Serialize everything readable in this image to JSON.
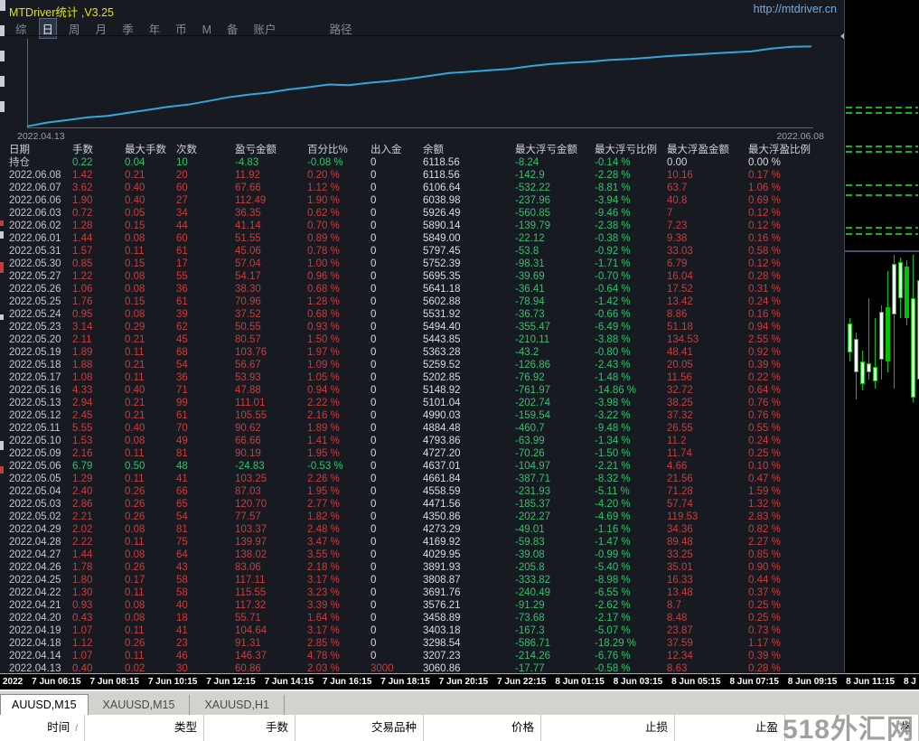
{
  "titlebar": {
    "title": "MTDriver统计 ,V3.25",
    "url": "http://mtdriver.cn"
  },
  "menu": {
    "items": [
      "综",
      "日",
      "周",
      "月",
      "季",
      "年",
      "币",
      "M",
      "备",
      "账户",
      "路径"
    ],
    "active": "日",
    "gap_before": "路径"
  },
  "equity_chart": {
    "start_label": "2022.04.13",
    "end_label": "2022.06.08"
  },
  "stats_table": {
    "headers": [
      "日期",
      "手数",
      "最大手数",
      "次数",
      "盈亏金额",
      "百分比%",
      "出入金",
      "余额",
      "最大浮亏金额",
      "最大浮亏比例",
      "最大浮盈金额",
      "最大浮盈比例"
    ],
    "rows": [
      {
        "cells": [
          "持仓",
          "0.22",
          "0.04",
          "10",
          "-4.83",
          "-0.08 %",
          "0",
          "6118.56",
          "-8.24",
          "-0.14 %",
          "0.00",
          "0.00 %"
        ],
        "tone": "green"
      },
      {
        "cells": [
          "2022.06.08",
          "1.42",
          "0.21",
          "20",
          "11.92",
          "0.20 %",
          "0",
          "6118.56",
          "-142.9",
          "-2.28 %",
          "10.16",
          "0.17 %"
        ],
        "tone": "red"
      },
      {
        "cells": [
          "2022.06.07",
          "3.62",
          "0.40",
          "60",
          "67.66",
          "1.12 %",
          "0",
          "6106.64",
          "-532.22",
          "-8.81 %",
          "63.7",
          "1.06 %"
        ],
        "tone": "red"
      },
      {
        "cells": [
          "2022.06.06",
          "1.90",
          "0.40",
          "27",
          "112.49",
          "1.90 %",
          "0",
          "6038.98",
          "-237.96",
          "-3.94 %",
          "40.8",
          "0.69 %"
        ],
        "tone": "red"
      },
      {
        "cells": [
          "2022.06.03",
          "0.72",
          "0.05",
          "34",
          "36.35",
          "0.62 %",
          "0",
          "5926.49",
          "-560.85",
          "-9.46 %",
          "7",
          "0.12 %"
        ],
        "tone": "red"
      },
      {
        "cells": [
          "2022.06.02",
          "1.28",
          "0.15",
          "44",
          "41.14",
          "0.70 %",
          "0",
          "5890.14",
          "-139.79",
          "-2.38 %",
          "7.23",
          "0.12 %"
        ],
        "tone": "red"
      },
      {
        "cells": [
          "2022.06.01",
          "1.44",
          "0.08",
          "60",
          "51.55",
          "0.89 %",
          "0",
          "5849.00",
          "-22.12",
          "-0.38 %",
          "9.38",
          "0.16 %"
        ],
        "tone": "red"
      },
      {
        "cells": [
          "2022.05.31",
          "1.57",
          "0.11",
          "61",
          "45.06",
          "0.78 %",
          "0",
          "5797.45",
          "-53.8",
          "-0.92 %",
          "33.03",
          "0.58 %"
        ],
        "tone": "red"
      },
      {
        "cells": [
          "2022.05.30",
          "0.85",
          "0.15",
          "17",
          "57.04",
          "1.00 %",
          "0",
          "5752.39",
          "-98.31",
          "-1.71 %",
          "6.79",
          "0.12 %"
        ],
        "tone": "red"
      },
      {
        "cells": [
          "2022.05.27",
          "1.22",
          "0.08",
          "55",
          "54.17",
          "0.96 %",
          "0",
          "5695.35",
          "-39.69",
          "-0.70 %",
          "16.04",
          "0.28 %"
        ],
        "tone": "red"
      },
      {
        "cells": [
          "2022.05.26",
          "1.06",
          "0.08",
          "36",
          "38.30",
          "0.68 %",
          "0",
          "5641.18",
          "-36.41",
          "-0.64 %",
          "17.52",
          "0.31 %"
        ],
        "tone": "red"
      },
      {
        "cells": [
          "2022.05.25",
          "1.76",
          "0.15",
          "61",
          "70.96",
          "1.28 %",
          "0",
          "5602.88",
          "-78.94",
          "-1.42 %",
          "13.42",
          "0.24 %"
        ],
        "tone": "red"
      },
      {
        "cells": [
          "2022.05.24",
          "0.95",
          "0.08",
          "39",
          "37.52",
          "0.68 %",
          "0",
          "5531.92",
          "-36.73",
          "-0.66 %",
          "8.86",
          "0.16 %"
        ],
        "tone": "red"
      },
      {
        "cells": [
          "2022.05.23",
          "3.14",
          "0.29",
          "62",
          "50.55",
          "0.93 %",
          "0",
          "5494.40",
          "-355.47",
          "-6.49 %",
          "51.18",
          "0.94 %"
        ],
        "tone": "red"
      },
      {
        "cells": [
          "2022.05.20",
          "2.11",
          "0.21",
          "45",
          "80.57",
          "1.50 %",
          "0",
          "5443.85",
          "-210.11",
          "-3.88 %",
          "134.53",
          "2.55 %"
        ],
        "tone": "red"
      },
      {
        "cells": [
          "2022.05.19",
          "1.89",
          "0.11",
          "68",
          "103.76",
          "1.97 %",
          "0",
          "5363.28",
          "-43.2",
          "-0.80 %",
          "48.41",
          "0.92 %"
        ],
        "tone": "red"
      },
      {
        "cells": [
          "2022.05.18",
          "1.88",
          "0.21",
          "54",
          "56.67",
          "1.09 %",
          "0",
          "5259.52",
          "-126.86",
          "-2.43 %",
          "20.05",
          "0.39 %"
        ],
        "tone": "red"
      },
      {
        "cells": [
          "2022.05.17",
          "1.08",
          "0.11",
          "36",
          "53.93",
          "1.05 %",
          "0",
          "5202.85",
          "-76.92",
          "-1.48 %",
          "11.56",
          "0.22 %"
        ],
        "tone": "red"
      },
      {
        "cells": [
          "2022.05.16",
          "4.33",
          "0.40",
          "71",
          "47.88",
          "0.94 %",
          "0",
          "5148.92",
          "-761.97",
          "-14.86 %",
          "32.72",
          "0.64 %"
        ],
        "tone": "red"
      },
      {
        "cells": [
          "2022.05.13",
          "2.94",
          "0.21",
          "99",
          "111.01",
          "2.22 %",
          "0",
          "5101.04",
          "-202.74",
          "-3.98 %",
          "38.25",
          "0.76 %"
        ],
        "tone": "red"
      },
      {
        "cells": [
          "2022.05.12",
          "2.45",
          "0.21",
          "61",
          "105.55",
          "2.16 %",
          "0",
          "4990.03",
          "-159.54",
          "-3.22 %",
          "37.32",
          "0.76 %"
        ],
        "tone": "red"
      },
      {
        "cells": [
          "2022.05.11",
          "5.55",
          "0.40",
          "70",
          "90.62",
          "1.89 %",
          "0",
          "4884.48",
          "-460.7",
          "-9.48 %",
          "26.55",
          "0.55 %"
        ],
        "tone": "red"
      },
      {
        "cells": [
          "2022.05.10",
          "1.53",
          "0.08",
          "49",
          "66.66",
          "1.41 %",
          "0",
          "4793.86",
          "-63.99",
          "-1.34 %",
          "11.2",
          "0.24 %"
        ],
        "tone": "red"
      },
      {
        "cells": [
          "2022.05.09",
          "2.16",
          "0.11",
          "81",
          "90.19",
          "1.95 %",
          "0",
          "4727.20",
          "-70.26",
          "-1.50 %",
          "11.74",
          "0.25 %"
        ],
        "tone": "red"
      },
      {
        "cells": [
          "2022.05.06",
          "6.79",
          "0.50",
          "48",
          "-24.83",
          "-0.53 %",
          "0",
          "4637.01",
          "-104.97",
          "-2.21 %",
          "4.66",
          "0.10 %"
        ],
        "tone": "green"
      },
      {
        "cells": [
          "2022.05.05",
          "1.29",
          "0.11",
          "41",
          "103.25",
          "2.26 %",
          "0",
          "4661.84",
          "-387.71",
          "-8.32 %",
          "21.56",
          "0.47 %"
        ],
        "tone": "red"
      },
      {
        "cells": [
          "2022.05.04",
          "2.40",
          "0.26",
          "66",
          "87.03",
          "1.95 %",
          "0",
          "4558.59",
          "-231.93",
          "-5.11 %",
          "71.28",
          "1.59 %"
        ],
        "tone": "red"
      },
      {
        "cells": [
          "2022.05.03",
          "2.86",
          "0.26",
          "65",
          "120.70",
          "2.77 %",
          "0",
          "4471.56",
          "-185.37",
          "-4.20 %",
          "57.74",
          "1.32 %"
        ],
        "tone": "red"
      },
      {
        "cells": [
          "2022.05.02",
          "2.21",
          "0.26",
          "54",
          "77.57",
          "1.82 %",
          "0",
          "4350.86",
          "-202.27",
          "-4.69 %",
          "119.53",
          "2.83 %"
        ],
        "tone": "red"
      },
      {
        "cells": [
          "2022.04.29",
          "2.02",
          "0.08",
          "81",
          "103.37",
          "2.48 %",
          "0",
          "4273.29",
          "-49.01",
          "-1.16 %",
          "34.36",
          "0.82 %"
        ],
        "tone": "red"
      },
      {
        "cells": [
          "2022.04.28",
          "2.22",
          "0.11",
          "75",
          "139.97",
          "3.47 %",
          "0",
          "4169.92",
          "-59.83",
          "-1.47 %",
          "89.48",
          "2.27 %"
        ],
        "tone": "red"
      },
      {
        "cells": [
          "2022.04.27",
          "1.44",
          "0.08",
          "64",
          "138.02",
          "3.55 %",
          "0",
          "4029.95",
          "-39.08",
          "-0.99 %",
          "33.25",
          "0.85 %"
        ],
        "tone": "red"
      },
      {
        "cells": [
          "2022.04.26",
          "1.78",
          "0.26",
          "43",
          "83.06",
          "2.18 %",
          "0",
          "3891.93",
          "-205.8",
          "-5.40 %",
          "35.01",
          "0.90 %"
        ],
        "tone": "red"
      },
      {
        "cells": [
          "2022.04.25",
          "1.80",
          "0.17",
          "58",
          "117.11",
          "3.17 %",
          "0",
          "3808.87",
          "-333.82",
          "-8.98 %",
          "16.33",
          "0.44 %"
        ],
        "tone": "red"
      },
      {
        "cells": [
          "2022.04.22",
          "1.30",
          "0.11",
          "58",
          "115.55",
          "3.23 %",
          "0",
          "3691.76",
          "-240.49",
          "-6.55 %",
          "13.48",
          "0.37 %"
        ],
        "tone": "red"
      },
      {
        "cells": [
          "2022.04.21",
          "0.93",
          "0.08",
          "40",
          "117.32",
          "3.39 %",
          "0",
          "3576.21",
          "-91.29",
          "-2.62 %",
          "8.7",
          "0.25 %"
        ],
        "tone": "red"
      },
      {
        "cells": [
          "2022.04.20",
          "0.43",
          "0.08",
          "18",
          "55.71",
          "1.64 %",
          "0",
          "3458.89",
          "-73.68",
          "-2.17 %",
          "8.48",
          "0.25 %"
        ],
        "tone": "red"
      },
      {
        "cells": [
          "2022.04.19",
          "1.07",
          "0.11",
          "41",
          "104.64",
          "3.17 %",
          "0",
          "3403.18",
          "-167.3",
          "-5.07 %",
          "23.87",
          "0.73 %"
        ],
        "tone": "red"
      },
      {
        "cells": [
          "2022.04.18",
          "1.12",
          "0.26",
          "23",
          "91.31",
          "2.85 %",
          "0",
          "3298.54",
          "-586.71",
          "-18.29 %",
          "37.59",
          "1.17 %"
        ],
        "tone": "red"
      },
      {
        "cells": [
          "2022.04.14",
          "1.07",
          "0.11",
          "46",
          "146.37",
          "4.78 %",
          "0",
          "3207.23",
          "-214.26",
          "-6.76 %",
          "12.34",
          "0.39 %"
        ],
        "tone": "red"
      },
      {
        "cells": [
          "2022.04.13",
          "0.40",
          "0.02",
          "30",
          "60.86",
          "2.03 %",
          "3000",
          "3060.86",
          "-17.77",
          "-0.58 %",
          "8.63",
          "0.28 %"
        ],
        "tone": "red"
      }
    ]
  },
  "time_axis": {
    "labels": [
      "2022",
      "7 Jun 06:15",
      "7 Jun 08:15",
      "7 Jun 10:15",
      "7 Jun 12:15",
      "7 Jun 14:15",
      "7 Jun 16:15",
      "7 Jun 18:15",
      "7 Jun 20:15",
      "7 Jun 22:15",
      "8 Jun 01:15",
      "8 Jun 03:15",
      "8 Jun 05:15",
      "8 Jun 07:15",
      "8 Jun 09:15",
      "8 Jun 11:15",
      "8 J"
    ]
  },
  "tabs": {
    "items": [
      {
        "label": "AUUSD,M15",
        "active": true
      },
      {
        "label": "XAUUSD,M15",
        "active": false
      },
      {
        "label": "XAUUSD,H1",
        "active": false
      }
    ]
  },
  "bottom_table": {
    "headers": [
      "时间",
      "类型",
      "手数",
      "交易品种",
      "价格",
      "止损",
      "止盈"
    ],
    "sort_indicator": "/",
    "partial_last_header": "格"
  },
  "watermark": "518外汇网",
  "colors": {
    "panel_bg": "#171a21",
    "title_yellow": "#e4e400",
    "url_blue": "#6fb0e8",
    "profit_red": "#cd3c3c",
    "loss_green": "#2bc56c",
    "equity_line": "#2fa8dc",
    "candle_green": "#00c400",
    "axis_text": "#ffffff"
  }
}
